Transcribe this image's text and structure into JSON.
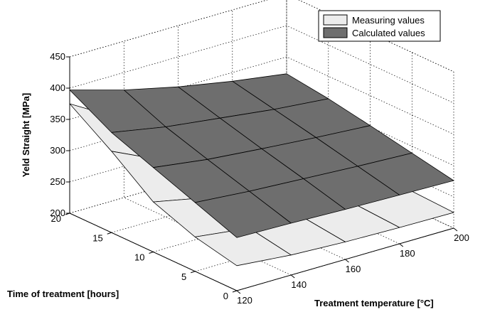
{
  "chart_data": {
    "type": "surface3d",
    "xlabel": "Treatment temperature [°C]",
    "ylabel": "Time of treatment [hours]",
    "zlabel": "Yeld Straight [MPa]",
    "x_ticks": [
      120,
      140,
      160,
      180,
      200
    ],
    "y_ticks": [
      0,
      5,
      10,
      15,
      20
    ],
    "z_ticks": [
      200,
      250,
      300,
      350,
      400,
      450
    ],
    "xlim": [
      120,
      200
    ],
    "ylim": [
      0,
      20
    ],
    "zlim": [
      200,
      450
    ],
    "grid": true,
    "legend_position": "top-right",
    "x": [
      120,
      140,
      160,
      180,
      200
    ],
    "y": [
      0,
      5,
      10,
      15,
      20
    ],
    "series": [
      {
        "name": "Measuring values",
        "color": "#ececec",
        "z": [
          [
            240,
            232,
            228,
            226,
            225
          ],
          [
            255,
            244,
            236,
            230,
            228
          ],
          [
            280,
            262,
            248,
            238,
            233
          ],
          [
            330,
            290,
            263,
            248,
            240
          ],
          [
            375,
            325,
            285,
            262,
            250
          ]
        ]
      },
      {
        "name": "Calculated values",
        "color": "#6e6e6e",
        "z": [
          [
            285,
            283,
            280,
            278,
            276
          ],
          [
            310,
            303,
            298,
            293,
            289
          ],
          [
            335,
            323,
            315,
            308,
            302
          ],
          [
            360,
            344,
            333,
            322,
            314
          ],
          [
            397,
            372,
            352,
            336,
            323
          ]
        ]
      }
    ]
  }
}
